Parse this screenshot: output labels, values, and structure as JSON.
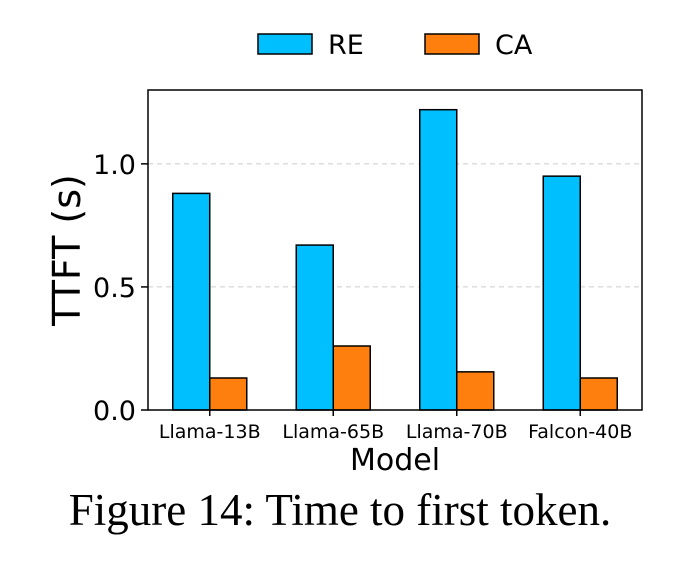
{
  "figure_caption": "Figure 14: Time to first token.",
  "colors": {
    "RE": "#00BFFF",
    "CA": "#FF7F0E",
    "edge": "#000000",
    "grid": "#cccccc"
  },
  "chart_data": {
    "type": "bar",
    "xlabel": "Model",
    "ylabel": "TTFT (s)",
    "categories": [
      "Llama-13B",
      "Llama-65B",
      "Llama-70B",
      "Falcon-40B"
    ],
    "series": [
      {
        "name": "RE",
        "values": [
          0.88,
          0.67,
          1.22,
          0.95
        ]
      },
      {
        "name": "CA",
        "values": [
          0.13,
          0.26,
          0.155,
          0.13
        ]
      }
    ],
    "ylim": [
      0,
      1.3
    ],
    "yticks": [
      0.0,
      0.5,
      1.0
    ],
    "ytick_labels": [
      "0.0",
      "0.5",
      "1.0"
    ],
    "grid": "horizontal dashed",
    "legend": "top-center"
  }
}
